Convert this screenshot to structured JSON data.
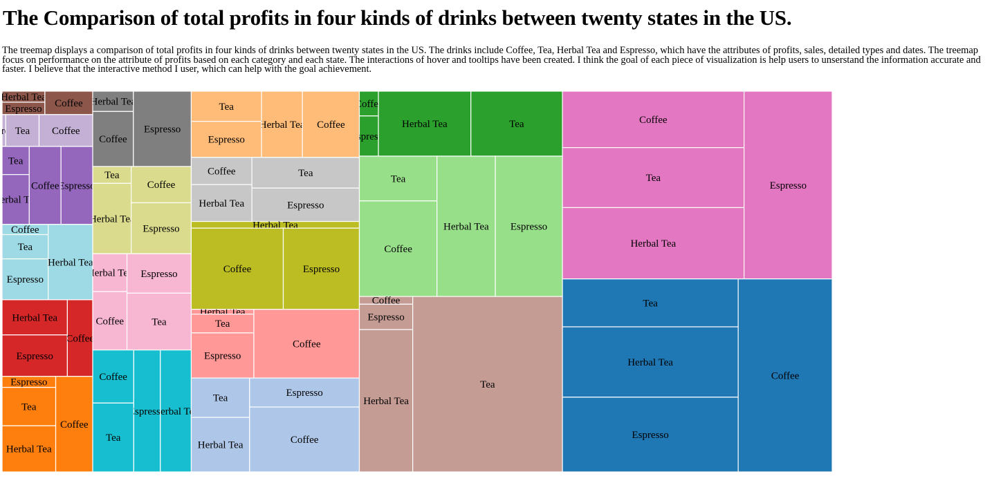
{
  "title": "The Comparison of total profits in four kinds of drinks between twenty states in the US.",
  "description": "The treemap displays a comparison of total profits in four kinds of drinks between twenty states in the US. The drinks include Coffee, Tea, Herbal Tea and Espresso, which have the attributes of profits, sales, detailed types and dates. The treemap focus on performance on the attribute of profits based on each category and each state. The interactions of hover and tooltips have been created. I think the goal of each piece of visualization is help users to unserstand the information accurate and faster. I believe that the interactive method I user, which can help with the goal achievement.",
  "chart_data": {
    "type": "treemap",
    "note_units": "relative profit, estimated from rectangle areas",
    "groups": [
      {
        "color": "#8c564b",
        "children": [
          {
            "name": "Herbal Tea",
            "value": 8
          },
          {
            "name": "Espresso",
            "value": 9
          },
          {
            "name": "Coffee",
            "value": 19
          }
        ]
      },
      {
        "color": "#c5b0d5",
        "children": [
          {
            "name": "Espresso",
            "value": 2
          },
          {
            "name": "Tea",
            "value": 18
          },
          {
            "name": "Coffee",
            "value": 29
          }
        ]
      },
      {
        "color": "#9467bd",
        "children": [
          {
            "name": "Tea",
            "value": 13
          },
          {
            "name": "Herbal Tea",
            "value": 23
          },
          {
            "name": "Coffee",
            "value": 42
          },
          {
            "name": "Espresso",
            "value": 42
          }
        ]
      },
      {
        "color": "#9edae5",
        "children": [
          {
            "name": "Coffee",
            "value": 8
          },
          {
            "name": "Tea",
            "value": 19
          },
          {
            "name": "Espresso",
            "value": 32
          },
          {
            "name": "Herbal Tea",
            "value": 57
          }
        ]
      },
      {
        "color": "#d62728",
        "children": [
          {
            "name": "Herbal Tea",
            "value": 39
          },
          {
            "name": "Espresso",
            "value": 46
          },
          {
            "name": "Coffee",
            "value": 33
          }
        ]
      },
      {
        "color": "#ff7f0e",
        "children": [
          {
            "name": "Espresso",
            "value": 10
          },
          {
            "name": "Tea",
            "value": 35
          },
          {
            "name": "Herbal Tea",
            "value": 42
          },
          {
            "name": "Coffee",
            "value": 60
          }
        ]
      },
      {
        "color": "#7f7f7f",
        "children": [
          {
            "name": "Herbal Tea",
            "value": 14
          },
          {
            "name": "Coffee",
            "value": 38
          },
          {
            "name": "Espresso",
            "value": 74
          }
        ]
      },
      {
        "color": "#dbdb8d",
        "children": [
          {
            "name": "Tea",
            "value": 11
          },
          {
            "name": "Herbal Tea",
            "value": 46
          },
          {
            "name": "Coffee",
            "value": 37
          },
          {
            "name": "Espresso",
            "value": 52
          }
        ]
      },
      {
        "color": "#f7b6d2",
        "children": [
          {
            "name": "Herbal Tea",
            "value": 22
          },
          {
            "name": "Coffee",
            "value": 34
          },
          {
            "name": "Espresso",
            "value": 43
          },
          {
            "name": "Tea",
            "value": 62
          }
        ]
      },
      {
        "color": "#17becf",
        "children": [
          {
            "name": "Coffee",
            "value": 37
          },
          {
            "name": "Tea",
            "value": 48
          },
          {
            "name": "Espresso",
            "value": 55
          },
          {
            "name": "Herbal Tea",
            "value": 64
          }
        ]
      },
      {
        "color": "#ffbb78",
        "children": [
          {
            "name": "Tea",
            "value": 36
          },
          {
            "name": "Espresso",
            "value": 43
          },
          {
            "name": "Herbal Tea",
            "value": 46
          },
          {
            "name": "Coffee",
            "value": 64
          }
        ]
      },
      {
        "color": "#c7c7c7",
        "children": [
          {
            "name": "Coffee",
            "value": 28
          },
          {
            "name": "Herbal Tea",
            "value": 38
          },
          {
            "name": "Tea",
            "value": 56
          },
          {
            "name": "Espresso",
            "value": 61
          }
        ]
      },
      {
        "color": "#bcbd22",
        "children": [
          {
            "name": "Herbal Tea",
            "value": 19
          },
          {
            "name": "Coffee",
            "value": 127
          },
          {
            "name": "Espresso",
            "value": 105
          }
        ]
      },
      {
        "color": "#ff9896",
        "children": [
          {
            "name": "Herbal Tea",
            "value": 5
          },
          {
            "name": "Tea",
            "value": 20
          },
          {
            "name": "Espresso",
            "value": 48
          },
          {
            "name": "Coffee",
            "value": 123
          }
        ]
      },
      {
        "color": "#aec7e8",
        "children": [
          {
            "name": "Tea",
            "value": 39
          },
          {
            "name": "Herbal Tea",
            "value": 54
          },
          {
            "name": "Espresso",
            "value": 54
          },
          {
            "name": "Coffee",
            "value": 121
          }
        ]
      },
      {
        "color": "#2ca02c",
        "children": [
          {
            "name": "Coffee",
            "value": 8
          },
          {
            "name": "Espresso",
            "value": 13
          },
          {
            "name": "Herbal Tea",
            "value": 102
          },
          {
            "name": "Tea",
            "value": 101
          }
        ]
      },
      {
        "color": "#98df8a",
        "children": [
          {
            "name": "Tea",
            "value": 59
          },
          {
            "name": "Coffee",
            "value": 126
          },
          {
            "name": "Herbal Tea",
            "value": 139
          },
          {
            "name": "Espresso",
            "value": 160
          }
        ]
      },
      {
        "color": "#c49c94",
        "children": [
          {
            "name": "Coffee",
            "value": 7
          },
          {
            "name": "Espresso",
            "value": 23
          },
          {
            "name": "Herbal Tea",
            "value": 129
          },
          {
            "name": "Tea",
            "value": 446
          }
        ]
      },
      {
        "color": "#e377c2",
        "children": [
          {
            "name": "Coffee",
            "value": 174
          },
          {
            "name": "Tea",
            "value": 185
          },
          {
            "name": "Herbal Tea",
            "value": 220
          },
          {
            "name": "Espresso",
            "value": 281
          }
        ]
      },
      {
        "color": "#1f77b4",
        "children": [
          {
            "name": "Tea",
            "value": 143
          },
          {
            "name": "Herbal Tea",
            "value": 210
          },
          {
            "name": "Espresso",
            "value": 223
          },
          {
            "name": "Coffee",
            "value": 308
          }
        ]
      }
    ]
  }
}
